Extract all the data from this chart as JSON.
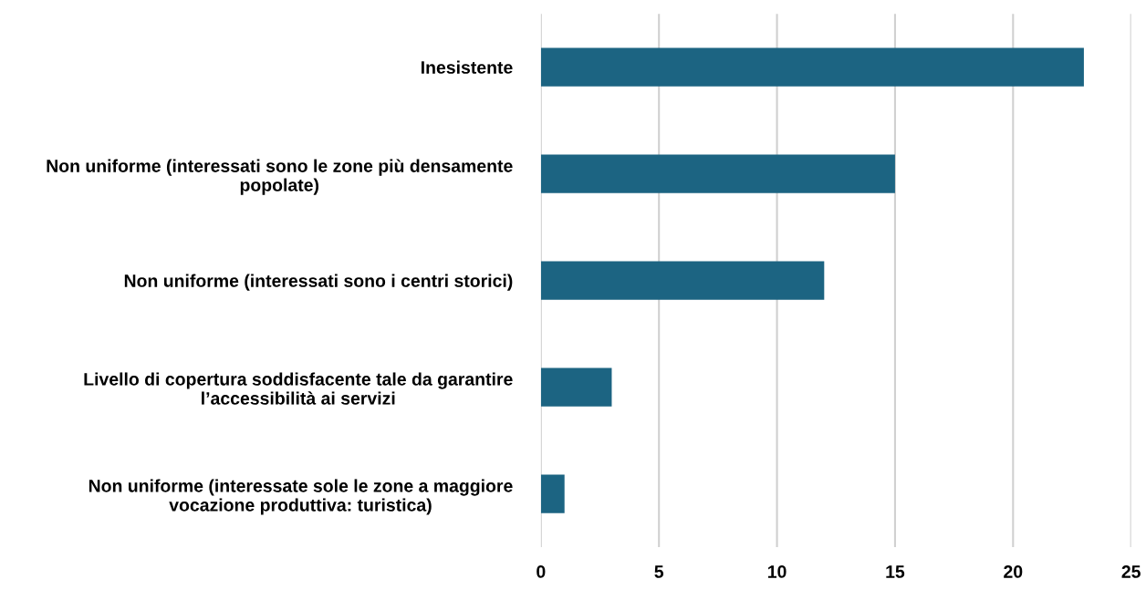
{
  "chart_data": {
    "type": "bar",
    "orientation": "horizontal",
    "categories": [
      "Inesistente",
      "Non uniforme (interessati sono le zone più densamente\npopolate)",
      "Non uniforme (interessati sono i centri storici)",
      "Livello di copertura soddisfacente tale da garantire\nl’accessibilità ai servizi",
      "Non uniforme (interessate sole le zone a maggiore\nvocazione produttiva: turistica)"
    ],
    "values": [
      23,
      15,
      12,
      3,
      1
    ],
    "color": "#1c6482",
    "xlim": [
      0,
      25
    ],
    "xticks": [
      0,
      5,
      10,
      15,
      20,
      25
    ],
    "grid": "x",
    "legend": false
  }
}
